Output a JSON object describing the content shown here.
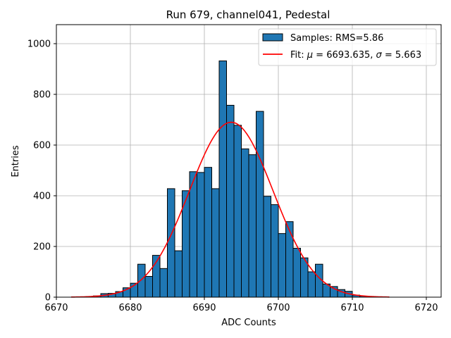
{
  "chart_data": {
    "type": "bar",
    "title": "Run 679, channel041, Pedestal",
    "xlabel": "ADC Counts",
    "ylabel": "Entries",
    "xlim": [
      6670,
      6722
    ],
    "ylim": [
      0,
      1075
    ],
    "xticks": [
      6670,
      6680,
      6690,
      6700,
      6710,
      6720
    ],
    "yticks": [
      0,
      200,
      400,
      600,
      800,
      1000
    ],
    "grid": true,
    "legend_position": "top-right",
    "histogram": {
      "name": "Samples: RMS=5.86",
      "bin_width": 1,
      "bin_starts": [
        6672,
        6673,
        6674,
        6675,
        6676,
        6677,
        6678,
        6679,
        6680,
        6681,
        6682,
        6683,
        6684,
        6685,
        6686,
        6687,
        6688,
        6689,
        6690,
        6691,
        6692,
        6693,
        6694,
        6695,
        6696,
        6697,
        6698,
        6699,
        6700,
        6701,
        6702,
        6703,
        6704,
        6705,
        6706,
        6707,
        6708,
        6709,
        6710,
        6711,
        6712,
        6713,
        6714
      ],
      "counts": [
        0,
        1,
        2,
        5,
        14,
        15,
        22,
        37,
        55,
        130,
        82,
        165,
        113,
        428,
        183,
        420,
        495,
        492,
        512,
        428,
        932,
        757,
        678,
        585,
        562,
        733,
        398,
        365,
        251,
        298,
        193,
        155,
        100,
        130,
        52,
        42,
        30,
        23,
        8,
        4,
        2,
        1,
        0
      ],
      "color": "#1f77b4",
      "edge_color": "#000000"
    },
    "fit": {
      "name_prefix": "Fit: ",
      "name_mid": " = 6693.635, ",
      "name_suffix": " = 5.663",
      "mu_symbol": "μ",
      "sigma_symbol": "σ",
      "mu": 6693.635,
      "sigma": 5.663,
      "peak": 690,
      "x_range": [
        6672,
        6715
      ],
      "color": "#ff0000"
    }
  }
}
